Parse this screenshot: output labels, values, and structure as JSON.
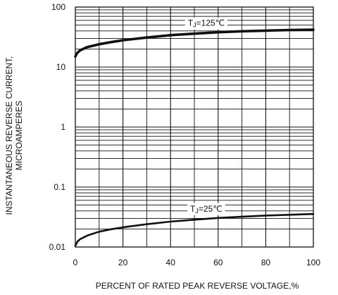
{
  "chart_data": {
    "type": "line",
    "title": "",
    "xlabel": "PERCENT OF RATED PEAK REVERSE VOLTAGE,%",
    "ylabel_lines": [
      "INSTANTANEOUS REVERSE CURRENT,",
      "MICROAMPERES"
    ],
    "x_ticks": [
      "0",
      "20",
      "40",
      "60",
      "80",
      "100"
    ],
    "y_ticks": [
      "0.01",
      "0.1",
      "1",
      "10",
      "100"
    ],
    "xlim": [
      0,
      100
    ],
    "ylim": [
      0.01,
      100
    ],
    "y_scale": "log",
    "grid": true,
    "series": [
      {
        "name": "TJ=125℃",
        "label_parts": {
          "main": "T",
          "sub": "J",
          "rest": "=125℃"
        },
        "x": [
          0,
          0.5,
          1,
          2,
          5,
          10,
          15,
          20,
          30,
          40,
          50,
          60,
          70,
          80,
          90,
          100
        ],
        "y": [
          15,
          16.5,
          17.5,
          19,
          21.5,
          24,
          26,
          28,
          31,
          34,
          36,
          38,
          39.5,
          40.5,
          41.5,
          42
        ]
      },
      {
        "name": "TJ=25℃",
        "label_parts": {
          "main": "T",
          "sub": "J",
          "rest": "=25℃"
        },
        "x": [
          0,
          0.5,
          1,
          2,
          5,
          10,
          15,
          20,
          30,
          40,
          50,
          60,
          70,
          80,
          90,
          100
        ],
        "y": [
          0.0105,
          0.0115,
          0.0125,
          0.0135,
          0.0155,
          0.018,
          0.0198,
          0.0213,
          0.024,
          0.0265,
          0.0285,
          0.0305,
          0.032,
          0.0335,
          0.0345,
          0.0355
        ]
      }
    ]
  }
}
